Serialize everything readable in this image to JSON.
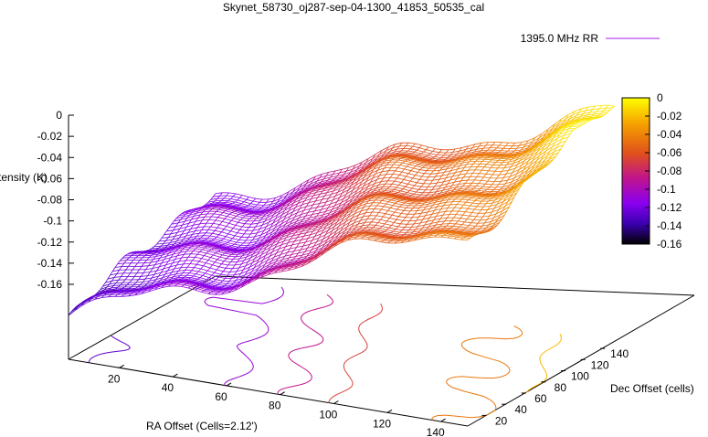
{
  "chart_data": {
    "type": "surface3d",
    "title": "Skynet_58730_oj287-sep-04-1300_41853_50535_cal",
    "legend": {
      "entries": [
        "1395.0 MHz RR"
      ],
      "placement": "top-right",
      "color": "#a020f0"
    },
    "xlabel": "RA Offset (Cells=2.12')",
    "ylabel": "Dec Offset (cells)",
    "zlabel": "Intensity (K)",
    "x_ticks": [
      "20",
      "40",
      "60",
      "80",
      "100",
      "120",
      "140"
    ],
    "y_ticks": [
      "20",
      "40",
      "60",
      "80",
      "100",
      "120",
      "140"
    ],
    "z_ticks": [
      "0",
      "-0.02",
      "-0.04",
      "-0.06",
      "-0.08",
      "-0.1",
      "-0.12",
      "-0.14",
      "-0.16"
    ],
    "colorbar_ticks": [
      "0",
      "-0.02",
      "-0.04",
      "-0.06",
      "-0.08",
      "-0.1",
      "-0.12",
      "-0.14",
      "-0.16"
    ],
    "xlim": [
      1,
      150
    ],
    "ylim": [
      1,
      150
    ],
    "zlim": [
      -0.16,
      0
    ],
    "cblim": [
      -0.16,
      0
    ],
    "surface_low": -0.135,
    "surface_high": -0.005,
    "colormap": [
      "#000000",
      "#3a00b0",
      "#8a00f0",
      "#c0148c",
      "#e0501c",
      "#f6a000",
      "#ffff00"
    ],
    "contour_levels": [
      -0.12,
      -0.1,
      -0.08,
      -0.06,
      -0.04,
      -0.02
    ],
    "grid": false
  }
}
